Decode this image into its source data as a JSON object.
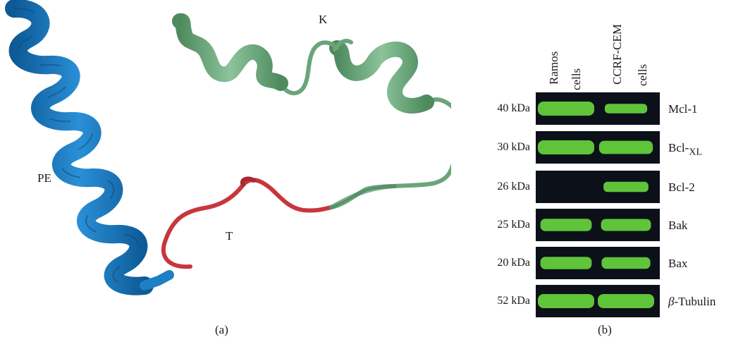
{
  "panel_a": {
    "label": "(a)",
    "segments": [
      {
        "id": "PE",
        "label": "PE",
        "color": "#1f7fc4"
      },
      {
        "id": "K",
        "label": "K",
        "color": "#6aa57a"
      },
      {
        "id": "T",
        "label": "T",
        "color": "#c8363d"
      }
    ]
  },
  "panel_b": {
    "label": "(b)",
    "columns": [
      {
        "line1": "Ramos",
        "line2": "cells"
      },
      {
        "line1": "CCRF-CEM",
        "line2": "cells"
      }
    ],
    "band_color": "#5fc43a",
    "rows": [
      {
        "kda": "40 kDa",
        "protein": "Mcl-1",
        "protein_sub": "",
        "ramos_band": 1.0,
        "ccrf_band": 0.45
      },
      {
        "kda": "30 kDa",
        "protein": "Bcl-",
        "protein_sub": "XL",
        "ramos_band": 1.0,
        "ccrf_band": 0.9
      },
      {
        "kda": "26 kDa",
        "protein": "Bcl-2",
        "protein_sub": "",
        "ramos_band": 0.0,
        "ccrf_band": 0.55
      },
      {
        "kda": "25 kDa",
        "protein": "Bak",
        "protein_sub": "",
        "ramos_band": 0.8,
        "ccrf_band": 0.75
      },
      {
        "kda": "20 kDa",
        "protein": "Bax",
        "protein_sub": "",
        "ramos_band": 0.8,
        "ccrf_band": 0.7
      },
      {
        "kda": "52 kDa",
        "protein": "-Tubulin",
        "protein_prefix": "β",
        "protein_sub": "",
        "ramos_band": 1.0,
        "ccrf_band": 1.0
      }
    ]
  }
}
